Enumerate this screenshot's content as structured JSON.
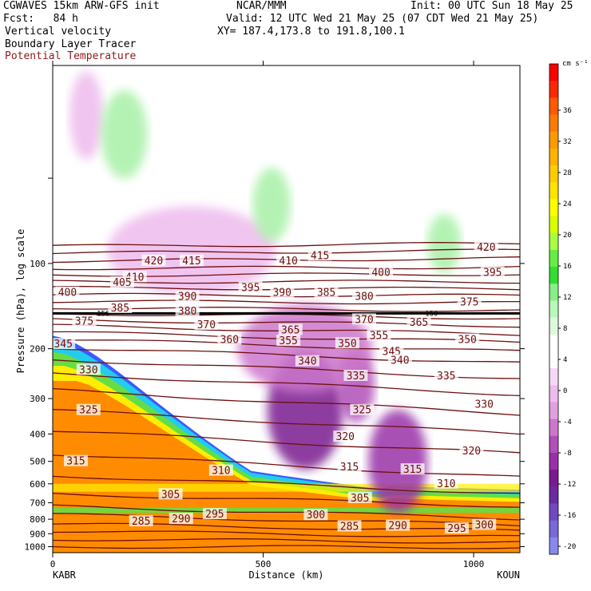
{
  "header": {
    "model_title": "CGWAVES 15km ARW-GFS init",
    "org": "NCAR/MMM",
    "init_time": "Init: 00 UTC Sun 18 May 25",
    "fcst": "Fcst:   84 h",
    "valid_time": "Valid: 12 UTC Wed 21 May 25 (07 CDT Wed 21 May 25)",
    "xy": "XY= 187.4,173.8 to 191.8,100.1",
    "field_1": "Vertical velocity",
    "field_2": "Boundary Layer Tracer",
    "field_3": "Potential Temperature",
    "field_3_color": "#8b1a1a"
  },
  "chart_data": {
    "type": "heatmap",
    "title": "",
    "xlabel": "Distance (km)",
    "ylabel": "Pressure (hPa), log scale",
    "xlim": [
      0,
      1110
    ],
    "ylim": [
      1050,
      20
    ],
    "y_scale": "log",
    "x_ticks": [
      0,
      500,
      1000
    ],
    "y_ticks": [
      100,
      200,
      300,
      400,
      500,
      600,
      700,
      800,
      900,
      1000
    ],
    "x_end_labels": [
      "KABR",
      "KOUN"
    ],
    "colorbar": {
      "unit": "cm s⁻¹",
      "labels": [
        36,
        32,
        28,
        24,
        20,
        16,
        12,
        8,
        4,
        0,
        -4,
        -8,
        -12,
        -16,
        -20
      ],
      "colors": [
        "#ff0000",
        "#ff2a00",
        "#ff5a00",
        "#ff7a00",
        "#ff9a00",
        "#ffb200",
        "#ffcc00",
        "#ffe400",
        "#ffff00",
        "#d8ff00",
        "#a8ff40",
        "#66ee44",
        "#33dd33",
        "#88ee88",
        "#bbf7bb",
        "#ddfadd",
        "#ffffff",
        "#ffffff",
        "#f6d8f6",
        "#eebbee",
        "#e0a0e0",
        "#cc77cc",
        "#b050b8",
        "#9930a8",
        "#7a1a90",
        "#6a2aa0",
        "#7048c0",
        "#7868d8",
        "#8888ee"
      ]
    },
    "theta_contours": {
      "color": "#6e0f0f",
      "levels": [
        285,
        290,
        295,
        300,
        305,
        310,
        315,
        320,
        325,
        330,
        335,
        340,
        345,
        350,
        355,
        360,
        365,
        370,
        375,
        380,
        385,
        390,
        395,
        400,
        405,
        410,
        415,
        420
      ],
      "isentrope_labels": [
        {
          "v": 420,
          "x": 240,
          "p": 98
        },
        {
          "v": 415,
          "x": 330,
          "p": 98
        },
        {
          "v": 410,
          "x": 195,
          "p": 112
        },
        {
          "v": 410,
          "x": 560,
          "p": 98
        },
        {
          "v": 415,
          "x": 635,
          "p": 94
        },
        {
          "v": 420,
          "x": 1030,
          "p": 88
        },
        {
          "v": 400,
          "x": 780,
          "p": 108
        },
        {
          "v": 395,
          "x": 1045,
          "p": 108
        },
        {
          "v": 405,
          "x": 165,
          "p": 117
        },
        {
          "v": 400,
          "x": 35,
          "p": 127
        },
        {
          "v": 395,
          "x": 470,
          "p": 122
        },
        {
          "v": 390,
          "x": 320,
          "p": 131
        },
        {
          "v": 390,
          "x": 545,
          "p": 127
        },
        {
          "v": 385,
          "x": 650,
          "p": 127
        },
        {
          "v": 380,
          "x": 740,
          "p": 131
        },
        {
          "v": 375,
          "x": 990,
          "p": 137
        },
        {
          "v": 385,
          "x": 160,
          "p": 144
        },
        {
          "v": 380,
          "x": 320,
          "p": 148
        },
        {
          "v": 375,
          "x": 75,
          "p": 160
        },
        {
          "v": 370,
          "x": 365,
          "p": 165
        },
        {
          "v": 370,
          "x": 740,
          "p": 158
        },
        {
          "v": 365,
          "x": 870,
          "p": 162
        },
        {
          "v": 365,
          "x": 565,
          "p": 172
        },
        {
          "v": 360,
          "x": 420,
          "p": 186
        },
        {
          "v": 355,
          "x": 560,
          "p": 188
        },
        {
          "v": 355,
          "x": 775,
          "p": 180
        },
        {
          "v": 350,
          "x": 700,
          "p": 192
        },
        {
          "v": 350,
          "x": 985,
          "p": 186
        },
        {
          "v": 345,
          "x": 805,
          "p": 205
        },
        {
          "v": 345,
          "x": 25,
          "p": 193
        },
        {
          "v": 340,
          "x": 605,
          "p": 222
        },
        {
          "v": 340,
          "x": 825,
          "p": 220
        },
        {
          "v": 335,
          "x": 720,
          "p": 250
        },
        {
          "v": 335,
          "x": 935,
          "p": 250
        },
        {
          "v": 330,
          "x": 85,
          "p": 238
        },
        {
          "v": 330,
          "x": 1025,
          "p": 315
        },
        {
          "v": 325,
          "x": 85,
          "p": 330
        },
        {
          "v": 325,
          "x": 735,
          "p": 330
        },
        {
          "v": 320,
          "x": 695,
          "p": 410
        },
        {
          "v": 320,
          "x": 995,
          "p": 460
        },
        {
          "v": 315,
          "x": 55,
          "p": 500
        },
        {
          "v": 315,
          "x": 705,
          "p": 525
        },
        {
          "v": 315,
          "x": 855,
          "p": 535
        },
        {
          "v": 310,
          "x": 400,
          "p": 540
        },
        {
          "v": 310,
          "x": 935,
          "p": 600
        },
        {
          "v": 305,
          "x": 280,
          "p": 655
        },
        {
          "v": 305,
          "x": 730,
          "p": 675
        },
        {
          "v": 300,
          "x": 625,
          "p": 775
        },
        {
          "v": 300,
          "x": 1025,
          "p": 840
        },
        {
          "v": 295,
          "x": 385,
          "p": 770
        },
        {
          "v": 295,
          "x": 960,
          "p": 865
        },
        {
          "v": 290,
          "x": 305,
          "p": 800
        },
        {
          "v": 290,
          "x": 820,
          "p": 845
        },
        {
          "v": 285,
          "x": 210,
          "p": 815
        },
        {
          "v": 285,
          "x": 705,
          "p": 850
        }
      ],
      "isentropes": [
        [
          [
            0,
            1000
          ],
          [
            1110,
            1005
          ]
        ],
        [
          [
            0,
            940
          ],
          [
            1110,
            965
          ]
        ],
        [
          [
            0,
            880
          ],
          [
            1110,
            925
          ]
        ],
        [
          [
            0,
            830
          ],
          [
            1110,
            880
          ]
        ],
        [
          [
            0,
            770
          ],
          [
            1110,
            840
          ]
        ],
        [
          [
            0,
            720
          ],
          [
            1110,
            795
          ]
        ],
        [
          [
            0,
            650
          ],
          [
            1110,
            720
          ]
        ],
        [
          [
            0,
            560
          ],
          [
            1110,
            650
          ]
        ],
        [
          [
            0,
            470
          ],
          [
            1110,
            570
          ]
        ],
        [
          [
            0,
            390
          ],
          [
            1110,
            470
          ]
        ],
        [
          [
            0,
            330
          ],
          [
            1110,
            400
          ]
        ],
        [
          [
            0,
            280
          ],
          [
            1110,
            340
          ]
        ],
        [
          [
            0,
            245
          ],
          [
            1110,
            290
          ]
        ],
        [
          [
            0,
            218
          ],
          [
            1110,
            255
          ]
        ],
        [
          [
            0,
            198
          ],
          [
            1110,
            225
          ]
        ],
        [
          [
            0,
            185
          ],
          [
            1110,
            205
          ]
        ],
        [
          [
            0,
            175
          ],
          [
            1110,
            190
          ]
        ],
        [
          [
            0,
            166
          ],
          [
            1110,
            178
          ]
        ],
        [
          [
            0,
            158
          ],
          [
            1110,
            166
          ]
        ],
        [
          [
            0,
            150
          ],
          [
            1110,
            156
          ]
        ],
        [
          [
            0,
            143
          ],
          [
            1110,
            147
          ]
        ],
        [
          [
            0,
            136
          ],
          [
            1110,
            138
          ]
        ],
        [
          [
            0,
            129
          ],
          [
            1110,
            130
          ]
        ],
        [
          [
            0,
            122
          ],
          [
            1110,
            123
          ]
        ],
        [
          [
            0,
            116
          ],
          [
            1110,
            116
          ]
        ],
        [
          [
            0,
            110
          ],
          [
            1110,
            109
          ]
        ],
        [
          [
            0,
            104
          ],
          [
            1110,
            103
          ]
        ],
        [
          [
            0,
            98
          ],
          [
            1110,
            96
          ]
        ],
        [
          [
            0,
            92
          ],
          [
            1110,
            90
          ]
        ],
        [
          [
            0,
            87
          ],
          [
            1110,
            85
          ]
        ]
      ]
    },
    "tropopause_bar": {
      "p": 150,
      "label": "150"
    },
    "vertical_velocity_blobs": [
      {
        "x": 600,
        "p": 330,
        "rx": 90,
        "rp": 0.16,
        "w": -12
      },
      {
        "x": 720,
        "p": 270,
        "rx": 45,
        "rp": 0.1,
        "w": -8
      },
      {
        "x": 820,
        "p": 500,
        "rx": 70,
        "rp": 0.14,
        "w": -10
      },
      {
        "x": 600,
        "p": 200,
        "rx": 160,
        "rp": 0.12,
        "w": -6
      },
      {
        "x": 330,
        "p": 90,
        "rx": 200,
        "rp": 0.12,
        "w": -4
      },
      {
        "x": 80,
        "p": 30,
        "rx": 40,
        "rp": 0.12,
        "w": -4
      },
      {
        "x": 520,
        "p": 62,
        "rx": 45,
        "rp": 0.1,
        "w": 4
      },
      {
        "x": 930,
        "p": 85,
        "rx": 40,
        "rp": 0.08,
        "w": 4
      },
      {
        "x": 170,
        "p": 35,
        "rx": 55,
        "rp": 0.12,
        "w": 4
      }
    ]
  }
}
